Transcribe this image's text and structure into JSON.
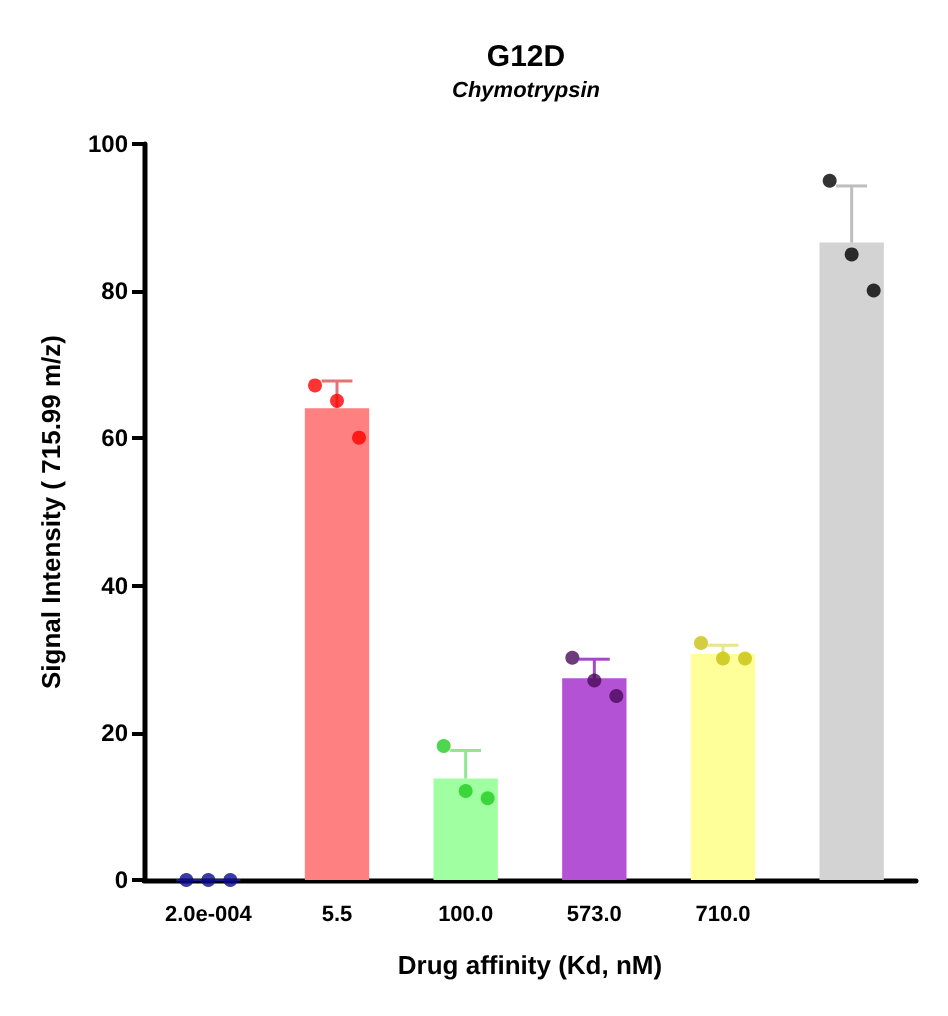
{
  "chart_data": {
    "type": "bar",
    "title": "G12D",
    "subtitle": "Chymotrypsin",
    "xlabel": "Drug affinity (Kd, nM)",
    "ylabel": "Signal Intensity ( 715.99 m/z)",
    "categories": [
      "2.0e-004",
      "5.5",
      "100.0",
      "573.0",
      "710.0",
      null
    ],
    "values": [
      0,
      64.1,
      13.8,
      27.4,
      30.7,
      86.6
    ],
    "colors": [
      "#1a1a8c",
      "#ff8080",
      "#a0ffa0",
      "#b452d6",
      "#ffff99",
      "#d3d3d3"
    ],
    "errors": [
      null,
      [
        64.1,
        67.8
      ],
      [
        13.8,
        17.6
      ],
      [
        27.4,
        30.0
      ],
      [
        30.7,
        31.9
      ],
      [
        86.6,
        94.3
      ]
    ],
    "series": [
      {
        "type": "scatter",
        "x": [
          "2.0e-004",
          "2.0e-004",
          "2.0e-004",
          "5.5",
          "5.5",
          "5.5",
          "100.0",
          "100.0",
          "100.0",
          "573.0",
          "573.0",
          "573.0",
          "710.0",
          "710.0",
          "710.0",
          null,
          null,
          null
        ],
        "values": [
          0,
          0,
          0,
          67.2,
          65.1,
          60.1,
          18.2,
          12.1,
          11.1,
          30.2,
          27.1,
          25.0,
          32.2,
          30.1,
          30.1,
          95.0,
          85.0,
          80.1
        ],
        "colors": [
          "#0a0a8a",
          "#0a0a8a",
          "#0a0a8a",
          "#ff0000",
          "#ff0000",
          "#ff0000",
          "#22cc22",
          "#22cc22",
          "#22cc22",
          "#4a0a5a",
          "#4a0a5a",
          "#4a0a5a",
          "#c8c010",
          "#c8c010",
          "#c8c010",
          "#000000",
          "#000000",
          "#000000"
        ]
      }
    ],
    "ylim": [
      0,
      100
    ],
    "yticks": [
      0,
      20,
      40,
      60,
      80,
      100
    ],
    "grid": false
  }
}
